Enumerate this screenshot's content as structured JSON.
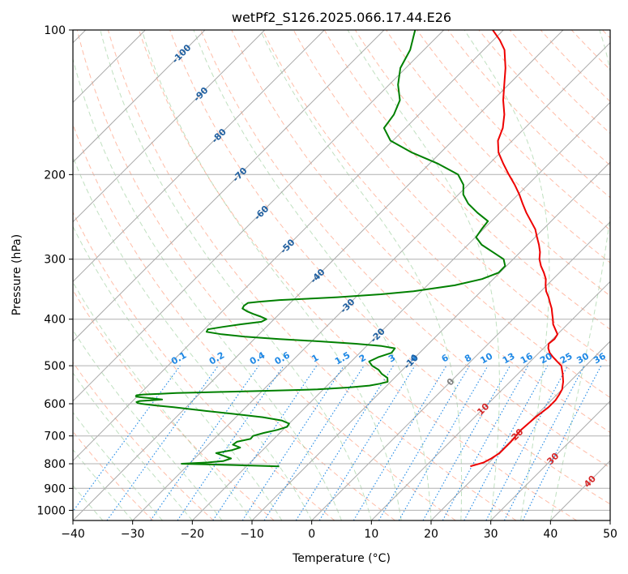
{
  "chart_data": {
    "type": "line",
    "title": "wetPf2_S126.2025.066.17.44.E26",
    "xlabel": "Temperature (°C)",
    "ylabel": "Pressure (hPa)",
    "xlim": [
      -40,
      50
    ],
    "ylim_hpa": [
      1050,
      100
    ],
    "y_scale": "log",
    "x_ticks": [
      "−40",
      "−30",
      "−20",
      "−10",
      "0",
      "10",
      "20",
      "30",
      "40",
      "50"
    ],
    "y_ticks": [
      "100",
      "200",
      "300",
      "400",
      "500",
      "600",
      "700",
      "800",
      "900",
      "1000"
    ],
    "skew_isotherm_labels": [
      "-100",
      "-90",
      "-80",
      "-70",
      "-60",
      "-50",
      "-40",
      "-30",
      "-20",
      "-10",
      "0",
      "10",
      "20",
      "30",
      "40"
    ],
    "mixing_ratio_labels": [
      "0.1",
      "0.2",
      "0.4",
      "0.6",
      "1",
      "1.5",
      "2",
      "3",
      "4",
      "6",
      "8",
      "10",
      "13",
      "16",
      "20",
      "25",
      "30",
      "36"
    ],
    "colors": {
      "temperature": "#ee0000",
      "dewpoint": "#008000",
      "isotherm_grid": "#a9a9a9",
      "isotherm_label_cold": "#1f5fa0",
      "isotherm_label_zero": "#808080",
      "isotherm_label_warm": "#d62728",
      "dry_adiabat": "#ff9a7a",
      "moist_adiabat": "#8cc78c",
      "mixing_ratio": "#1e88e5"
    },
    "series": [
      {
        "id": "temperature",
        "pressure": [
          810,
          795,
          780,
          760,
          720,
          680,
          640,
          610,
          590,
          575,
          560,
          540,
          520,
          500,
          490,
          480,
          470,
          460,
          450,
          440,
          430,
          420,
          410,
          400,
          390,
          380,
          370,
          360,
          350,
          340,
          330,
          320,
          310,
          300,
          290,
          280,
          270,
          260,
          250,
          240,
          230,
          220,
          210,
          200,
          190,
          180,
          170,
          160,
          150,
          140,
          130,
          120,
          110,
          105,
          100
        ],
        "temp": [
          17.5,
          19.1,
          19.7,
          20.2,
          20.2,
          19.9,
          20.2,
          20.7,
          20.7,
          20.4,
          20,
          18.9,
          17.5,
          15.9,
          14.5,
          13.1,
          11.8,
          10.8,
          10.1,
          10.3,
          10,
          8.8,
          7.6,
          6.7,
          5.7,
          4.7,
          3.5,
          2.3,
          0.9,
          -0.2,
          -1.2,
          -2.6,
          -4.2,
          -5.6,
          -6.7,
          -8.1,
          -9.7,
          -11.3,
          -13.4,
          -15.6,
          -17.7,
          -19.8,
          -22.2,
          -24.9,
          -27.6,
          -30.3,
          -32.4,
          -33.7,
          -35.7,
          -38.3,
          -40.7,
          -43.3,
          -46.5,
          -48.9,
          -51.8
        ]
      },
      {
        "id": "dewpoint",
        "pressure": [
          810,
          805,
          800,
          795,
          790,
          780,
          770,
          760,
          750,
          740,
          730,
          720,
          710,
          700,
          690,
          680,
          670,
          660,
          650,
          640,
          630,
          620,
          610,
          605,
          600,
          598,
          595,
          592,
          590,
          588,
          585,
          582,
          580,
          578,
          576,
          574,
          572,
          570,
          565,
          560,
          555,
          550,
          545,
          540,
          530,
          520,
          510,
          500,
          490,
          480,
          470,
          460,
          455,
          450,
          445,
          440,
          435,
          430,
          425,
          420,
          415,
          410,
          405,
          400,
          395,
          390,
          385,
          380,
          375,
          370,
          368,
          365,
          362,
          360,
          355,
          350,
          340,
          330,
          320,
          310,
          300,
          290,
          280,
          270,
          260,
          250,
          240,
          230,
          220,
          210,
          200,
          190,
          180,
          170,
          160,
          150,
          140,
          130,
          120,
          110,
          100
        ],
        "temp": [
          -14.5,
          -22.3,
          -31.3,
          -27.1,
          -24.8,
          -23.9,
          -25.6,
          -27.3,
          -25.2,
          -24.2,
          -25.9,
          -25.7,
          -23.9,
          -24.0,
          -22.7,
          -20.9,
          -19.8,
          -20.0,
          -21.8,
          -25.5,
          -30.8,
          -36.7,
          -42.1,
          -45.4,
          -48.1,
          -48.8,
          -49.2,
          -48.8,
          -47.1,
          -45.3,
          -47.0,
          -48.9,
          -50.1,
          -50.3,
          -50.3,
          -49.3,
          -46.6,
          -44.0,
          -31.6,
          -21.0,
          -16.2,
          -12.9,
          -11.5,
          -10.5,
          -11.2,
          -12.8,
          -14.0,
          -15.8,
          -17.0,
          -16.2,
          -14.7,
          -14.9,
          -17.5,
          -22.2,
          -28.5,
          -35.8,
          -42.0,
          -46.3,
          -49.2,
          -49.4,
          -47.3,
          -44.7,
          -41.7,
          -41.3,
          -42.7,
          -44.4,
          -45.9,
          -47.1,
          -47.3,
          -47.1,
          -45.5,
          -42.3,
          -36.6,
          -33.1,
          -26.3,
          -21.3,
          -15.4,
          -11.9,
          -10.2,
          -10.2,
          -11.6,
          -14.6,
          -17.7,
          -19.9,
          -20.3,
          -20.6,
          -23.8,
          -26.8,
          -29.2,
          -30.8,
          -33.4,
          -38.5,
          -44.8,
          -50.4,
          -53.6,
          -54.2,
          -55.6,
          -58.5,
          -60.9,
          -62.3,
          -64.8
        ]
      }
    ]
  }
}
